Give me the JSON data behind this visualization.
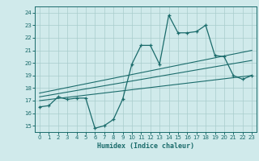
{
  "xlabel": "Humidex (Indice chaleur)",
  "bg_color": "#d0eaeb",
  "grid_color": "#a8cccc",
  "line_color": "#1a6b6b",
  "xlim": [
    -0.5,
    23.5
  ],
  "ylim": [
    14.5,
    24.5
  ],
  "yticks": [
    15,
    16,
    17,
    18,
    19,
    20,
    21,
    22,
    23,
    24
  ],
  "xticks": [
    0,
    1,
    2,
    3,
    4,
    5,
    6,
    7,
    8,
    9,
    10,
    11,
    12,
    13,
    14,
    15,
    16,
    17,
    18,
    19,
    20,
    21,
    22,
    23
  ],
  "main_x": [
    0,
    1,
    2,
    3,
    4,
    5,
    6,
    7,
    8,
    9,
    10,
    11,
    12,
    13,
    14,
    15,
    16,
    17,
    18,
    19,
    20,
    21,
    22,
    23
  ],
  "main_y": [
    16.5,
    16.6,
    17.3,
    17.1,
    17.2,
    17.2,
    14.8,
    15.0,
    15.5,
    17.1,
    19.9,
    21.4,
    21.4,
    19.9,
    23.8,
    22.4,
    22.4,
    22.5,
    23.0,
    20.6,
    20.5,
    19.0,
    18.7,
    19.0
  ],
  "line1_x": [
    0,
    23
  ],
  "line1_y": [
    17.0,
    19.0
  ],
  "line2_x": [
    0,
    23
  ],
  "line2_y": [
    17.3,
    20.2
  ],
  "line3_x": [
    0,
    23
  ],
  "line3_y": [
    17.6,
    21.0
  ]
}
